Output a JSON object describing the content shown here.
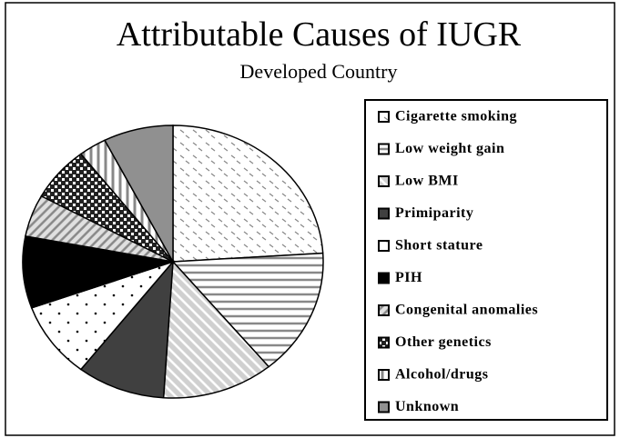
{
  "chart_data": {
    "type": "pie",
    "title": "Attributable Causes of IUGR",
    "subtitle": "Developed Country",
    "categories": [
      "Cigarette smoking",
      "Low weight gain",
      "Low BMI",
      "Primiparity",
      "Short stature",
      "PIH",
      "Congenital anomalies",
      "Other genetics",
      "Alcohol/drugs",
      "Unknown"
    ],
    "values": [
      24,
      15,
      12,
      9.5,
      9,
      8.5,
      5,
      6.5,
      3,
      7.5
    ],
    "colors": [
      "#ffffff",
      "#ffffff",
      "#d0d0d0",
      "#404040",
      "#ffffff",
      "#000000",
      "#e0e0e0",
      "#ffffff",
      "#ffffff",
      "#909090"
    ]
  }
}
